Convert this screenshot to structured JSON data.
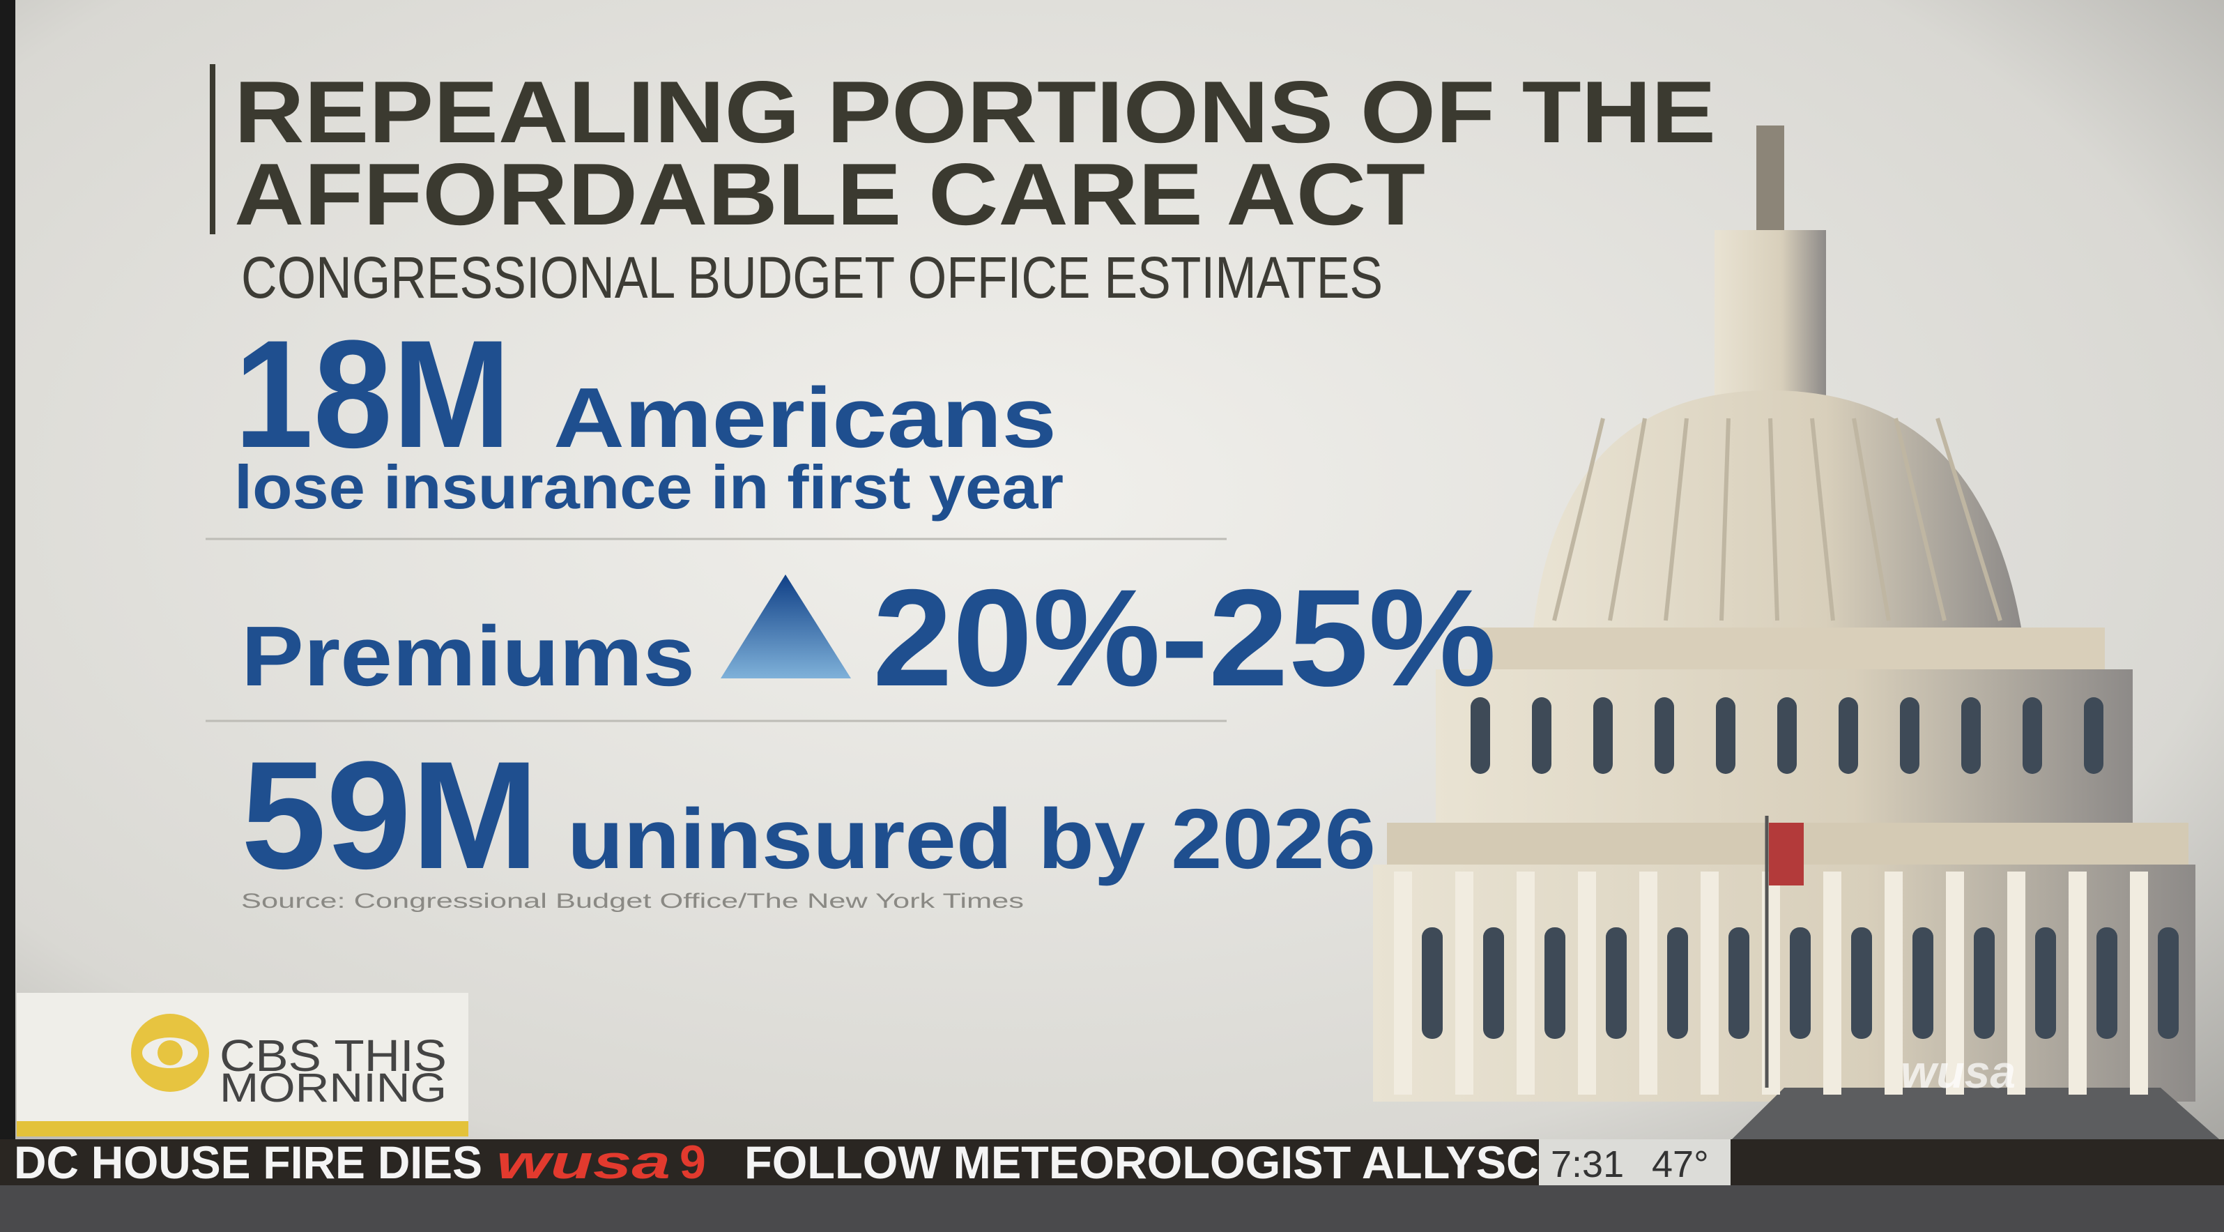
{
  "header": {
    "title_lines": [
      "REPEALING PORTIONS OF THE",
      "AFFORDABLE CARE ACT"
    ],
    "subtitle": "CONGRESSIONAL BUDGET OFFICE ESTIMATES"
  },
  "stats": [
    {
      "figure": "18M",
      "label": "Americans",
      "detail": "lose insurance in first year"
    },
    {
      "label": "Premiums",
      "figure": "20%-25%"
    },
    {
      "figure": "59M",
      "label": "uninsured by 2026"
    }
  ],
  "source": "Source: Congressional Budget Office/The New York Times",
  "logo": {
    "line1": "CBS THIS",
    "line2": "MORNING"
  },
  "ticker": {
    "left": "DC HOUSE FIRE DIES",
    "station": "wusa",
    "channel": "9",
    "right": "FOLLOW METEOROLOGIST ALLYSC",
    "time": "7:31",
    "temp": "47°"
  },
  "watermark": "wusa"
}
